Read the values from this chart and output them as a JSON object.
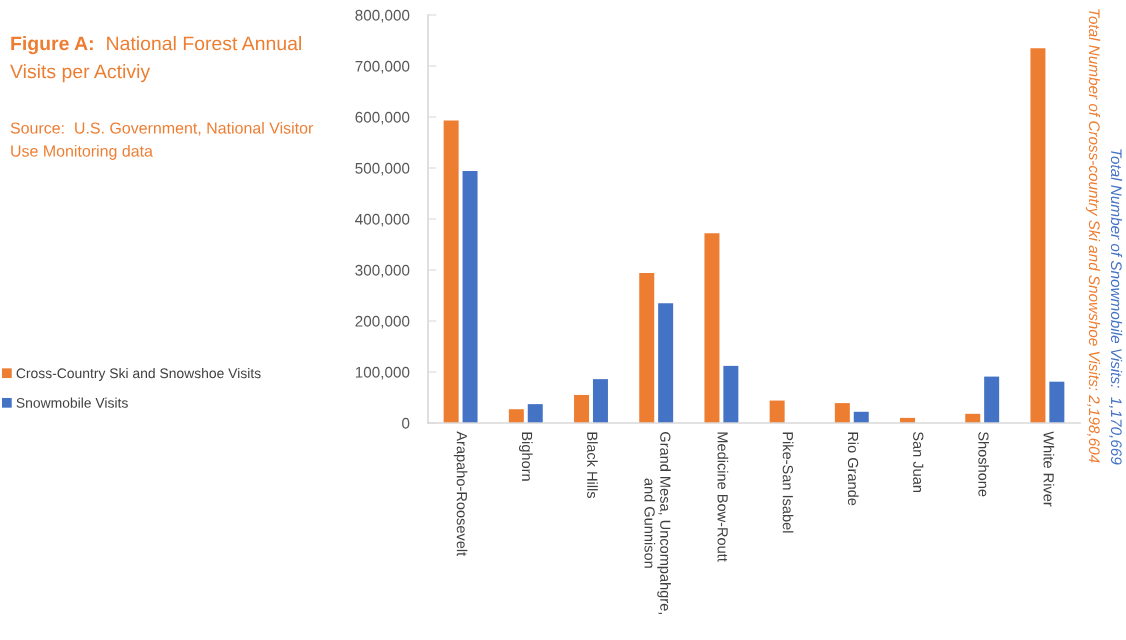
{
  "chart_data": {
    "type": "bar",
    "title": "Figure A:  National Forest Annual Visits per Activiy",
    "annotations": [
      "Source:  U.S. Government, National Visitor Use Monitoring data",
      "Total Number of Cross-country Ski and Snowshoe Visits: 2,198,604",
      "Total Number of Snowmobile Visits:  1,170,669"
    ],
    "categories": [
      "Arapaho-Roosevelt",
      "Bighorn",
      "Black Hills",
      "Grand Mesa, Uncompahgre, and Gunnison",
      "Medicine Bow-Routt",
      "Pike-San Isabel",
      "Rio Grande",
      "San Juan",
      "Shoshone",
      "White River"
    ],
    "series": [
      {
        "name": "Cross-Country Ski and Snowshoe Visits",
        "color": "#ed7d31",
        "values": [
          593000,
          27000,
          55000,
          294000,
          372000,
          44000,
          39000,
          10000,
          18000,
          735000
        ]
      },
      {
        "name": "Snowmobile Visits",
        "color": "#4472c4",
        "values": [
          494000,
          37000,
          86000,
          235000,
          112000,
          null,
          22000,
          null,
          91000,
          81000
        ]
      }
    ],
    "ylim": [
      0,
      800000
    ],
    "yticks": [
      0,
      {
        "value": 100000,
        "label": "100,000"
      },
      {
        "value": 200000,
        "label": "200,000"
      },
      {
        "value": 300000,
        "label": "300,000"
      },
      {
        "value": 400000,
        "label": "400,000"
      },
      {
        "value": 500000,
        "label": "500,000"
      },
      {
        "value": 600000,
        "label": "600,000"
      },
      {
        "value": 700000,
        "label": "700,000"
      },
      {
        "value": 800000,
        "label": "800,000"
      }
    ],
    "legend": "left"
  }
}
